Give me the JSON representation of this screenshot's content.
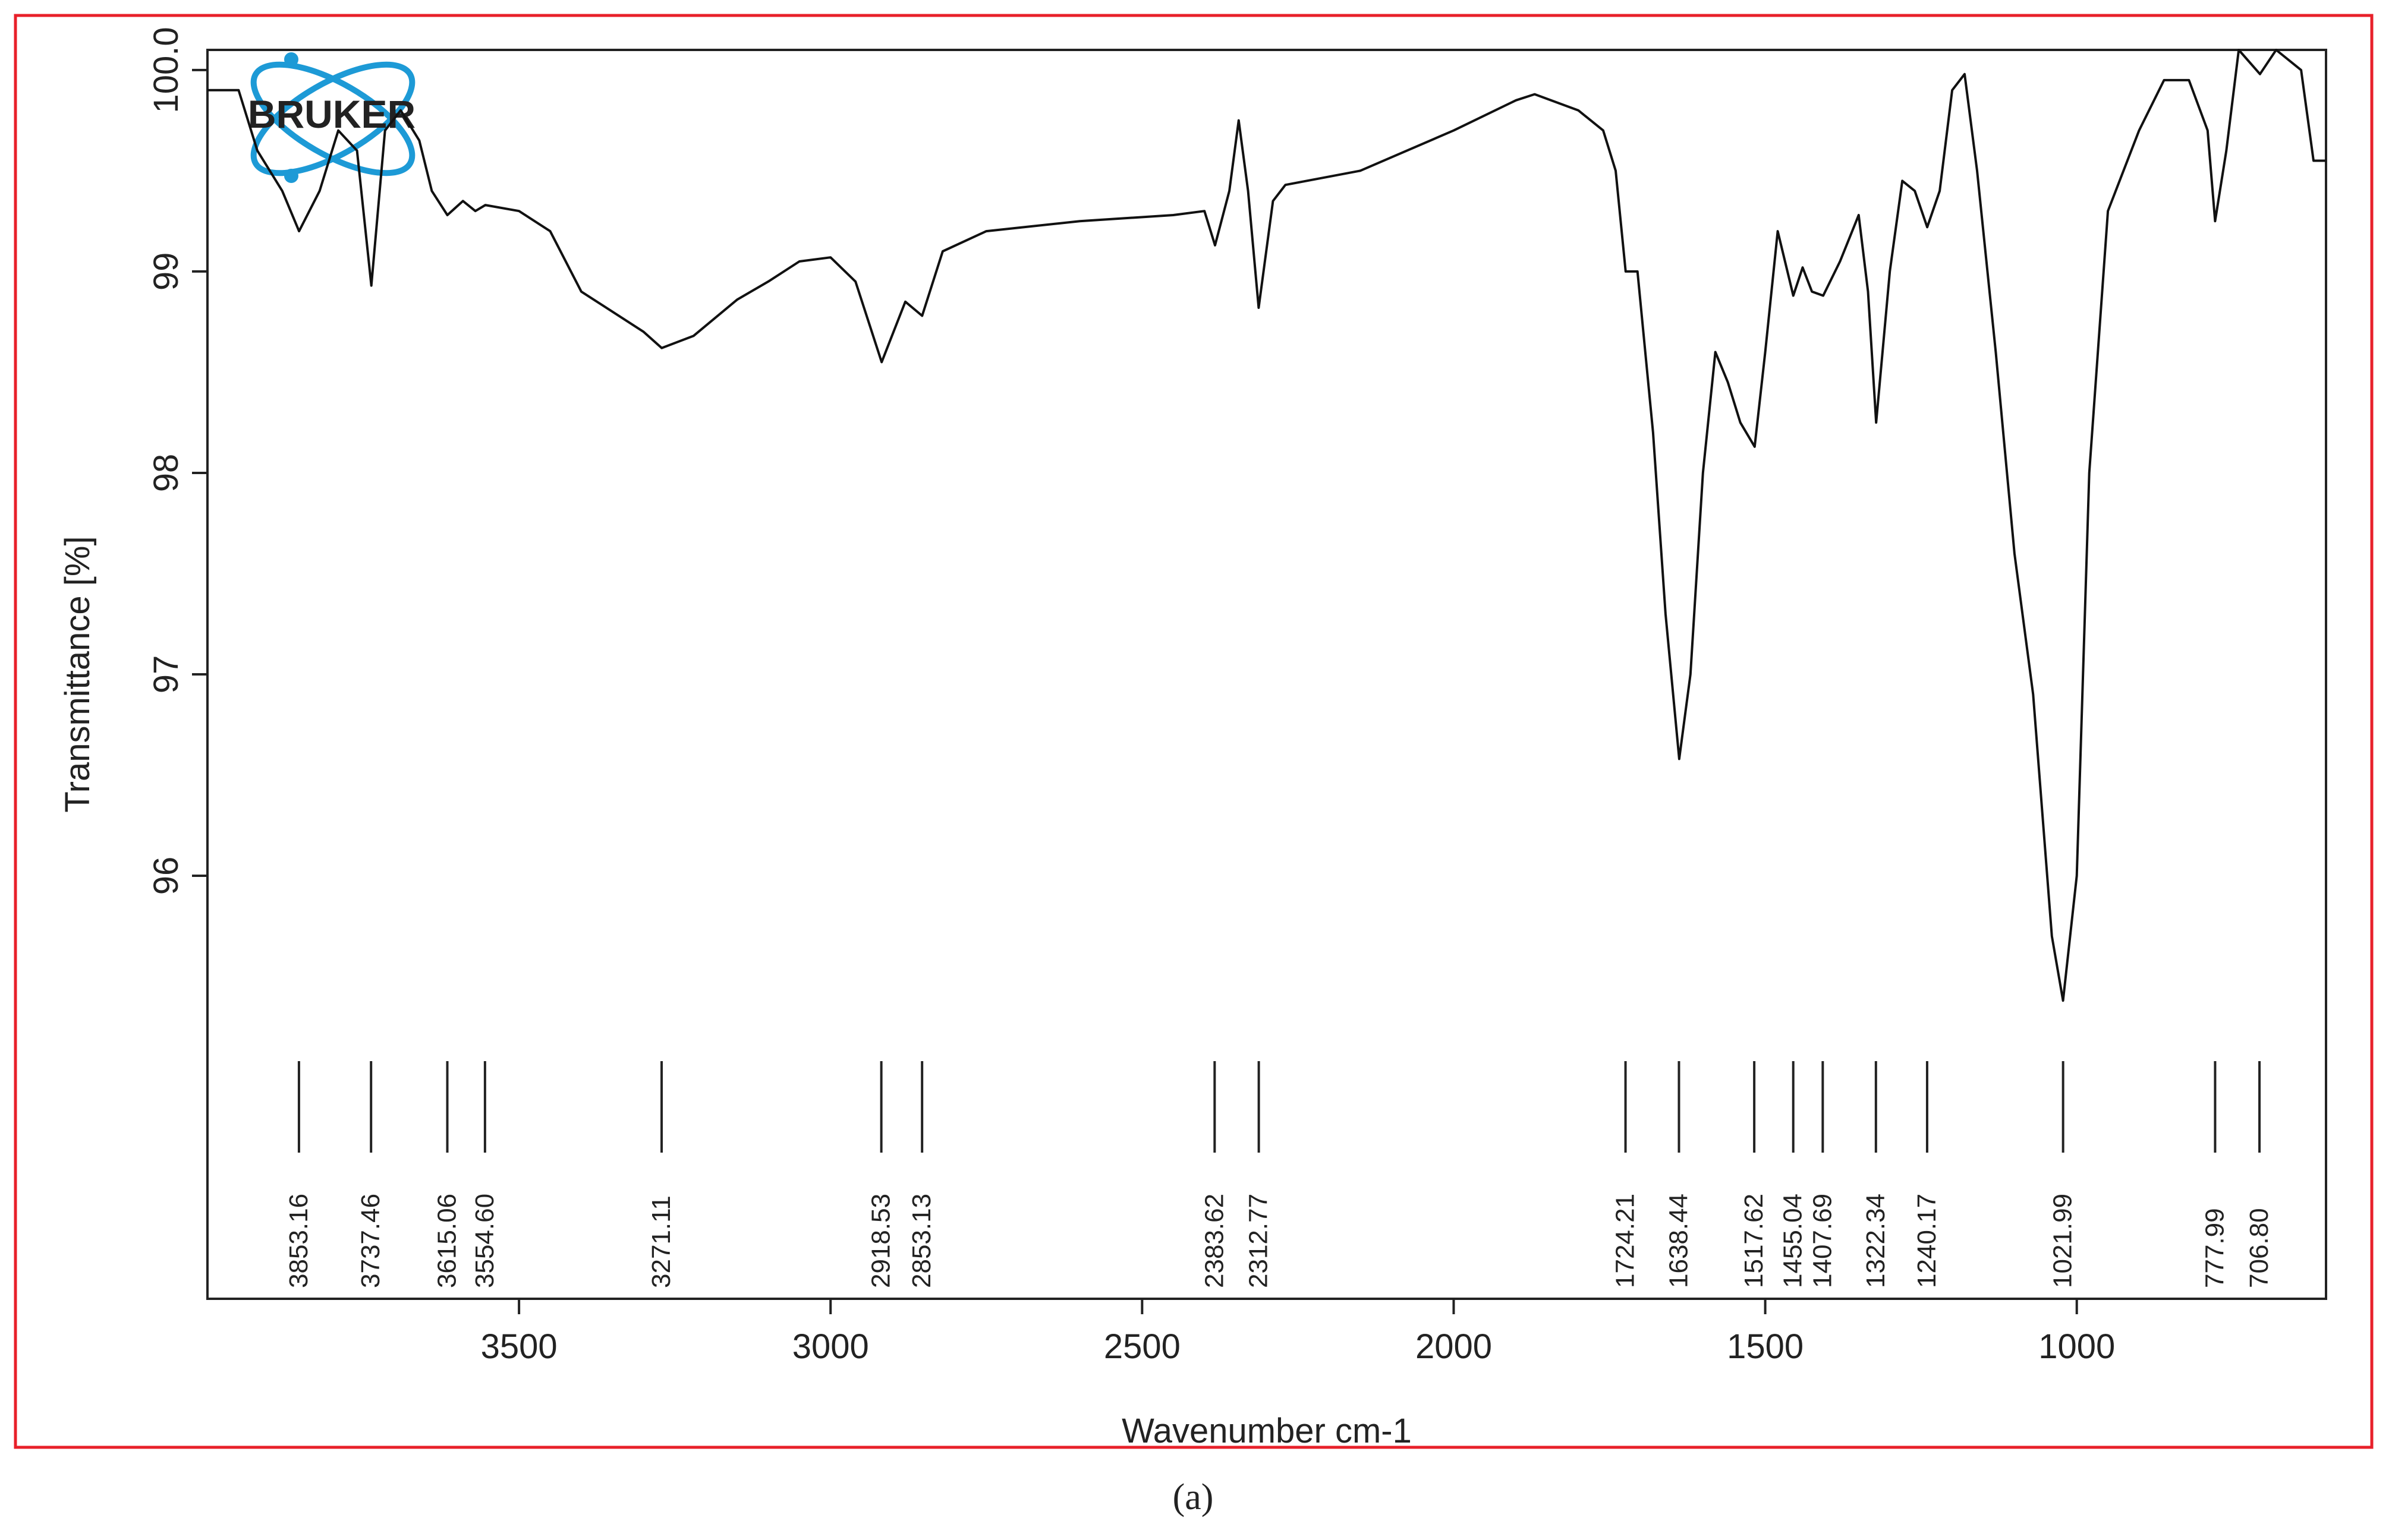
{
  "chart_data": {
    "type": "line",
    "logo": "BRUKER",
    "x_label": "Wavenumber cm-1",
    "y_label": "Transmittance [%]",
    "caption": "(a)",
    "color": "#111111",
    "xlim": [
      4000,
      600
    ],
    "xticks": [
      3500,
      3000,
      2500,
      2000,
      1500,
      1000
    ],
    "ylim": [
      93.9,
      100.1
    ],
    "yticks": [
      {
        "value": 100,
        "label": "100.0"
      },
      99,
      98,
      97,
      96
    ],
    "x": [
      4000,
      3950,
      3920,
      3880,
      3853,
      3820,
      3790,
      3760,
      3737,
      3715,
      3690,
      3660,
      3640,
      3615,
      3590,
      3570,
      3554,
      3500,
      3450,
      3400,
      3350,
      3300,
      3271,
      3220,
      3150,
      3100,
      3050,
      3000,
      2960,
      2918,
      2880,
      2853,
      2820,
      2750,
      2600,
      2450,
      2400,
      2383,
      2360,
      2345,
      2330,
      2313,
      2290,
      2270,
      2150,
      2000,
      1900,
      1870,
      1800,
      1760,
      1740,
      1724,
      1705,
      1680,
      1660,
      1638,
      1620,
      1600,
      1580,
      1560,
      1540,
      1517,
      1500,
      1480,
      1455,
      1440,
      1425,
      1407,
      1380,
      1350,
      1335,
      1322,
      1300,
      1280,
      1260,
      1240,
      1220,
      1200,
      1180,
      1160,
      1130,
      1100,
      1070,
      1040,
      1022,
      1000,
      980,
      950,
      900,
      860,
      820,
      790,
      778,
      760,
      740,
      706,
      680,
      640,
      620,
      600
    ],
    "values": [
      99.9,
      99.9,
      99.6,
      99.4,
      99.2,
      99.4,
      99.7,
      99.6,
      98.93,
      99.7,
      99.8,
      99.65,
      99.4,
      99.28,
      99.35,
      99.3,
      99.33,
      99.3,
      99.2,
      98.9,
      98.8,
      98.7,
      98.62,
      98.68,
      98.86,
      98.95,
      99.05,
      99.07,
      98.95,
      98.55,
      98.85,
      98.78,
      99.1,
      99.2,
      99.25,
      99.28,
      99.3,
      99.13,
      99.4,
      99.75,
      99.4,
      98.82,
      99.35,
      99.43,
      99.5,
      99.7,
      99.85,
      99.88,
      99.8,
      99.7,
      99.5,
      99.0,
      99.0,
      98.2,
      97.3,
      96.58,
      97.0,
      98.0,
      98.6,
      98.45,
      98.25,
      98.13,
      98.6,
      99.2,
      98.88,
      99.02,
      98.9,
      98.88,
      99.05,
      99.28,
      98.9,
      98.25,
      99.0,
      99.45,
      99.4,
      99.22,
      99.4,
      99.9,
      99.98,
      99.5,
      98.6,
      97.6,
      96.9,
      95.7,
      95.38,
      96.0,
      98.0,
      99.3,
      99.7,
      99.95,
      99.95,
      99.7,
      99.25,
      99.6,
      100.1,
      99.98,
      100.1,
      100.0,
      99.55,
      99.55
    ],
    "peaks": [
      3853.16,
      3737.46,
      3615.06,
      3554.6,
      3271.11,
      2918.53,
      2853.13,
      2383.62,
      2312.77,
      1724.21,
      1638.44,
      1517.62,
      1455.04,
      1407.69,
      1322.34,
      1240.17,
      1021.99,
      777.99,
      706.8
    ],
    "peak_labels": [
      "3853.16",
      "3737.46",
      "3615.06",
      "3554.60",
      "3271.11",
      "2918.53",
      "2853.13",
      "2383.62",
      "2312.77",
      "1724.21",
      "1638.44",
      "1517.62",
      "1455.04",
      "1407.69",
      "1322.34",
      "1240.17",
      "1021.99",
      "777.99",
      "706.80"
    ]
  }
}
